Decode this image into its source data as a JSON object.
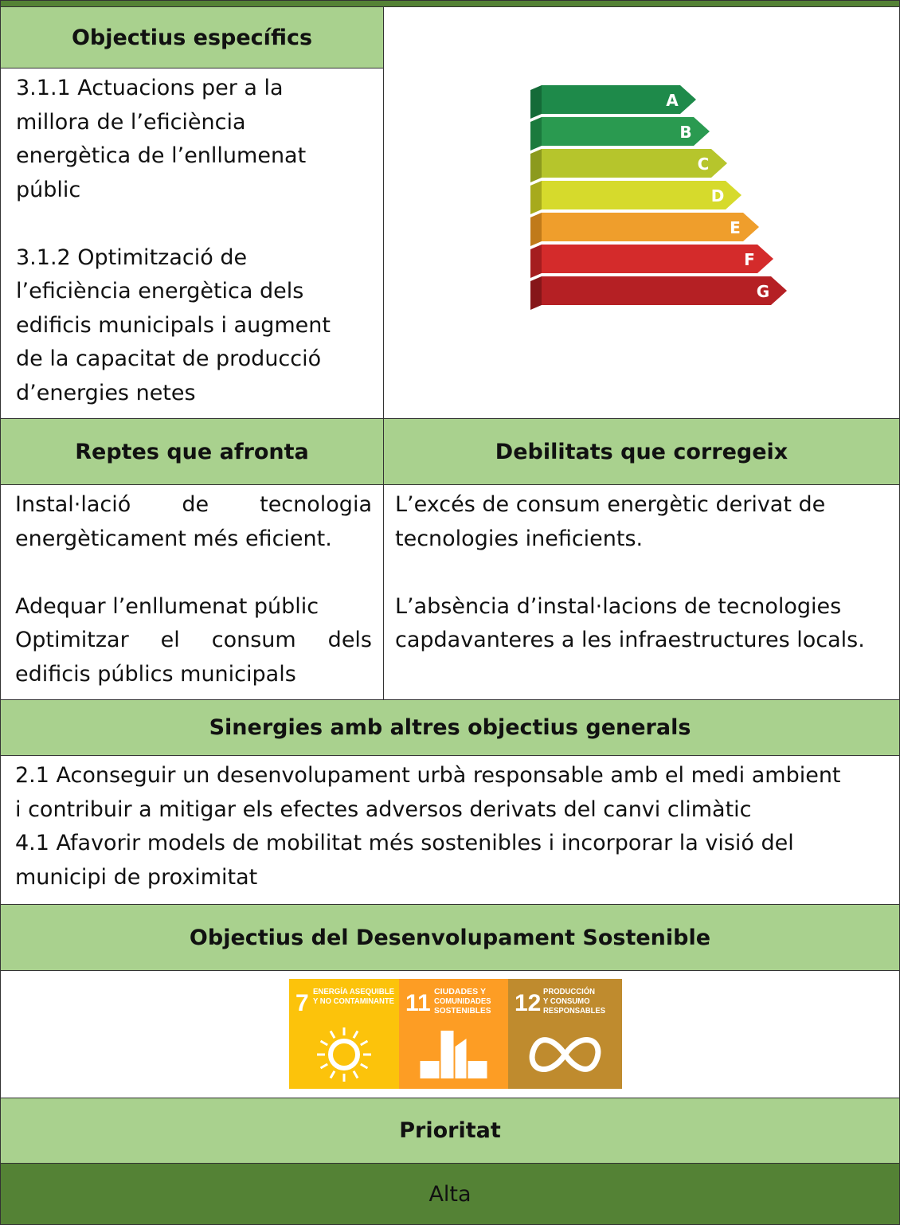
{
  "table": {
    "objectives": {
      "header": "Objectius específics",
      "paragraphs": [
        [
          "3.1.1 Actuacions per a la",
          "millora de l’eficiència",
          "energètica de l’enllumenat",
          "públic"
        ],
        [
          "3.1.2 Optimització de",
          "l’eficiència energètica dels",
          "edificis municipals i augment",
          "de la capacitat de producció",
          "d’energies netes"
        ]
      ]
    },
    "energy_label": {
      "letters": [
        "A",
        "B",
        "C",
        "D",
        "E",
        "F",
        "G"
      ]
    },
    "challenges": {
      "header": "Reptes que afronta",
      "paragraphs": [
        [
          "Instal·lació de tecnologia",
          "energèticament més eficient."
        ],
        [
          "Adequar l’enllumenat públic",
          "Optimitzar el consum dels",
          "edificis públics municipals"
        ]
      ]
    },
    "weaknesses": {
      "header": "Debilitats que corregeix",
      "paragraphs": [
        [
          "L’excés de consum energètic derivat de",
          "tecnologies ineficients."
        ],
        [
          "L’absència d’instal·lacions de tecnologies",
          "capdavanteres a les infraestructures locals."
        ]
      ]
    },
    "synergies": {
      "header": "Sinergies amb altres objectius generals",
      "lines": [
        "2.1 Aconseguir un desenvolupament urbà responsable amb el medi ambient",
        "i contribuir a mitigar els efectes adversos derivats del canvi climàtic",
        "4.1 Afavorir models de mobilitat més sostenibles i incorporar la visió del",
        "municipi de proximitat"
      ]
    },
    "sdg": {
      "header": "Objectius del Desenvolupament Sostenible",
      "goals": [
        {
          "number": "7",
          "label": [
            "ENERGÍA ASEQUIBLE",
            "Y NO CONTAMINANTE"
          ]
        },
        {
          "number": "11",
          "label": [
            "CIUDADES Y",
            "COMUNIDADES",
            "SOSTENIBLES"
          ]
        },
        {
          "number": "12",
          "label": [
            "PRODUCCIÓN",
            "Y CONSUMO",
            "RESPONSABLES"
          ]
        }
      ]
    },
    "priority": {
      "header": "Prioritat",
      "value": "Alta"
    }
  }
}
